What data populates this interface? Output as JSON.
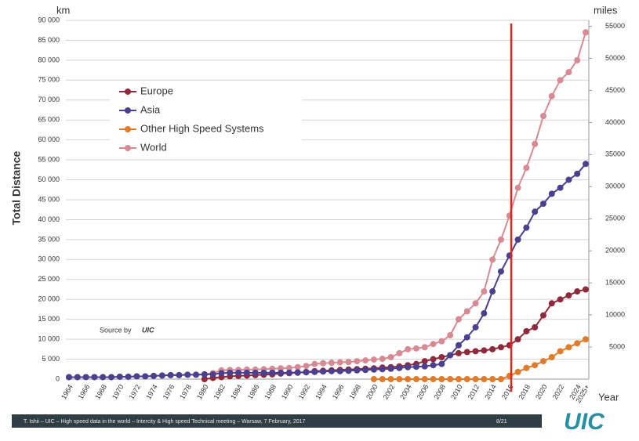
{
  "chart_data": {
    "type": "line",
    "y_label": "Total Distance",
    "y_unit": "km",
    "y2_unit": "miles",
    "x_label": "Year",
    "source": "Source by",
    "source_logo": "UIC",
    "footer": "T. Ishii – UIC – High speed data in the world – Intercity & High speed Technical meeting – Warsaw, 7 February, 2017",
    "page_number": "8/21",
    "logo": "UIC",
    "grid": true,
    "legend_position": "upper left",
    "categories": [
      "1964",
      null,
      "1966",
      null,
      "1968",
      null,
      "1970",
      null,
      "1972",
      null,
      "1974",
      null,
      "1976",
      null,
      "1978",
      null,
      "1980",
      null,
      "1982",
      null,
      "1984",
      null,
      "1986",
      null,
      "1988",
      null,
      "1990",
      null,
      "1992",
      null,
      "1994",
      null,
      "1996",
      null,
      "1998",
      null,
      "2000",
      null,
      "2002",
      null,
      "2004",
      null,
      "2006",
      null,
      "2008",
      null,
      "2010",
      null,
      "2012",
      null,
      "2014",
      null,
      "2016",
      null,
      "2018",
      null,
      "2020",
      null,
      "2022",
      null,
      "2024",
      "2025+"
    ],
    "ylim": [
      0,
      90000
    ],
    "yticks": [
      0,
      {
        "value": 5000,
        "label": "5 000"
      },
      {
        "value": 10000,
        "label": "10 000"
      },
      {
        "value": 15000,
        "label": "15 000"
      },
      {
        "value": 20000,
        "label": "20 000"
      },
      {
        "value": 25000,
        "label": "25 000"
      },
      {
        "value": 30000,
        "label": "30 000"
      },
      {
        "value": 35000,
        "label": "35 000"
      },
      {
        "value": 40000,
        "label": "40 000"
      },
      {
        "value": 45000,
        "label": "45 000"
      },
      {
        "value": 50000,
        "label": "50 000"
      },
      {
        "value": 55000,
        "label": "55 000"
      },
      {
        "value": 60000,
        "label": "60 000"
      },
      {
        "value": 65000,
        "label": "65 000"
      },
      {
        "value": 70000,
        "label": "70 000"
      },
      {
        "value": 75000,
        "label": "75 000"
      },
      {
        "value": 80000,
        "label": "80 000"
      },
      {
        "value": 85000,
        "label": "85 000"
      },
      {
        "value": 90000,
        "label": "90 000"
      }
    ],
    "y2lim": [
      0,
      55923
    ],
    "y2ticks": [
      5000,
      10000,
      15000,
      20000,
      25000,
      30000,
      35000,
      40000,
      45000,
      50000,
      55000
    ],
    "series": [
      {
        "name": "Europe",
        "color": "#8e2a3c",
        "values": [
          null,
          null,
          null,
          null,
          null,
          null,
          null,
          null,
          null,
          null,
          null,
          null,
          null,
          null,
          null,
          null,
          0,
          300,
          500,
          700,
          800,
          900,
          1000,
          1100,
          1200,
          1400,
          1500,
          1600,
          1800,
          2000,
          2100,
          2200,
          2300,
          2400,
          2500,
          2600,
          2700,
          2900,
          3000,
          3200,
          3500,
          3800,
          4500,
          5000,
          5500,
          6000,
          6500,
          6800,
          7000,
          7200,
          7500,
          8000,
          8500,
          10000,
          12000,
          13000,
          16000,
          19000,
          20000,
          21000,
          22000,
          22500
        ]
      },
      {
        "name": "Asia",
        "color": "#4b3f8f",
        "values": [
          500,
          500,
          500,
          500,
          500,
          500,
          600,
          600,
          700,
          700,
          800,
          900,
          1000,
          1000,
          1100,
          1100,
          1200,
          1200,
          1500,
          1600,
          1600,
          1600,
          1600,
          1600,
          1600,
          1600,
          1600,
          1700,
          1700,
          1800,
          1900,
          2000,
          2000,
          2100,
          2200,
          2300,
          2400,
          2500,
          2600,
          2800,
          3000,
          3100,
          3200,
          3500,
          3800,
          6000,
          8500,
          10500,
          13000,
          16500,
          22000,
          27000,
          31000,
          35000,
          38000,
          42000,
          44000,
          46500,
          48000,
          50000,
          51500,
          54000
        ]
      },
      {
        "name": "Other High Speed Systems",
        "color": "#e07b2a",
        "values": [
          null,
          null,
          null,
          null,
          null,
          null,
          null,
          null,
          null,
          null,
          null,
          null,
          null,
          null,
          null,
          null,
          null,
          null,
          null,
          null,
          null,
          null,
          null,
          null,
          null,
          null,
          null,
          null,
          null,
          null,
          null,
          null,
          null,
          null,
          null,
          null,
          0,
          0,
          0,
          0,
          0,
          0,
          0,
          0,
          0,
          0,
          0,
          0,
          0,
          0,
          0,
          0,
          800,
          1800,
          2800,
          3500,
          4500,
          5500,
          7000,
          8000,
          9000,
          10000
        ]
      },
      {
        "name": "World",
        "color": "#d88a93",
        "values": [
          500,
          500,
          500,
          500,
          500,
          500,
          600,
          600,
          700,
          700,
          800,
          900,
          1000,
          1000,
          1100,
          1100,
          1200,
          1500,
          2200,
          2300,
          2300,
          2400,
          2400,
          2500,
          2600,
          2700,
          2800,
          3000,
          3300,
          3800,
          4000,
          4100,
          4200,
          4300,
          4500,
          4700,
          4900,
          5100,
          5500,
          6500,
          7500,
          7700,
          8000,
          8800,
          9500,
          11000,
          15000,
          17000,
          19000,
          22000,
          30000,
          35000,
          41000,
          48000,
          53000,
          59000,
          66000,
          71000,
          75000,
          77000,
          80000,
          87000
        ]
      }
    ]
  }
}
